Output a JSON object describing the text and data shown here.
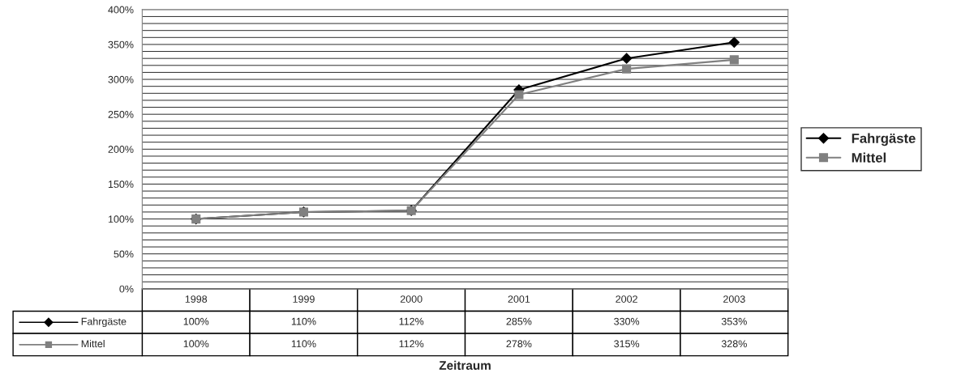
{
  "chart_data": {
    "type": "line",
    "xlabel": "Zeitraum",
    "categories": [
      "1998",
      "1999",
      "2000",
      "2001",
      "2002",
      "2003"
    ],
    "series": [
      {
        "name": "Fahrgäste",
        "color": "#000000",
        "marker": "diamond",
        "values": [
          100,
          110,
          112,
          285,
          330,
          353
        ],
        "value_labels": [
          "100%",
          "110%",
          "112%",
          "285%",
          "330%",
          "353%"
        ]
      },
      {
        "name": "Mittel",
        "color": "#808080",
        "marker": "square",
        "values": [
          100,
          110,
          112,
          278,
          315,
          328
        ],
        "value_labels": [
          "100%",
          "110%",
          "112%",
          "278%",
          "315%",
          "328%"
        ]
      }
    ],
    "ylim": [
      0,
      400
    ],
    "yticks": [
      {
        "value": 0,
        "label": "0%"
      },
      {
        "value": 10,
        "label": null
      },
      {
        "value": 20,
        "label": null
      },
      {
        "value": 30,
        "label": null
      },
      {
        "value": 40,
        "label": null
      },
      {
        "value": 50,
        "label": "50%"
      },
      {
        "value": 60,
        "label": null
      },
      {
        "value": 70,
        "label": null
      },
      {
        "value": 80,
        "label": null
      },
      {
        "value": 90,
        "label": null
      },
      {
        "value": 100,
        "label": "100%"
      },
      {
        "value": 110,
        "label": null
      },
      {
        "value": 120,
        "label": null
      },
      {
        "value": 130,
        "label": null
      },
      {
        "value": 140,
        "label": null
      },
      {
        "value": 150,
        "label": "150%"
      },
      {
        "value": 160,
        "label": null
      },
      {
        "value": 170,
        "label": null
      },
      {
        "value": 180,
        "label": null
      },
      {
        "value": 190,
        "label": null
      },
      {
        "value": 200,
        "label": "200%"
      },
      {
        "value": 210,
        "label": null
      },
      {
        "value": 220,
        "label": null
      },
      {
        "value": 230,
        "label": null
      },
      {
        "value": 240,
        "label": null
      },
      {
        "value": 250,
        "label": "250%"
      },
      {
        "value": 260,
        "label": null
      },
      {
        "value": 270,
        "label": null
      },
      {
        "value": 280,
        "label": null
      },
      {
        "value": 290,
        "label": null
      },
      {
        "value": 300,
        "label": "300%"
      },
      {
        "value": 310,
        "label": null
      },
      {
        "value": 320,
        "label": null
      },
      {
        "value": 330,
        "label": null
      },
      {
        "value": 340,
        "label": null
      },
      {
        "value": 350,
        "label": "350%"
      },
      {
        "value": 360,
        "label": null
      },
      {
        "value": 370,
        "label": null
      },
      {
        "value": 380,
        "label": null
      },
      {
        "value": 390,
        "label": null
      },
      {
        "value": 400,
        "label": "400%"
      }
    ],
    "grid": "y",
    "legend": "right"
  }
}
